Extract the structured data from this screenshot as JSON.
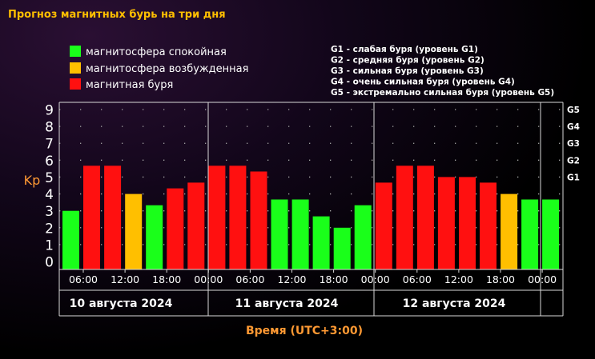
{
  "colors": {
    "calm": "#1aff1a",
    "excited": "#ffbf00",
    "storm": "#ff1010",
    "title": "#ffbf00",
    "kp_label": "#ff9933",
    "time_label": "#ff9933",
    "text": "#ffffff",
    "grid_dots": "#aaaaaa"
  },
  "chart_data": {
    "type": "bar",
    "title": "Прогноз магнитных бурь на три дня",
    "ylabel": "Kp",
    "xlabel": "Время (UTC+3:00)",
    "ylim": [
      0,
      9
    ],
    "y_ticks": [
      "0",
      "1",
      "2",
      "3",
      "4",
      "5",
      "6",
      "7",
      "8",
      "9"
    ],
    "right_ticks": [
      {
        "label": "G1",
        "value": 5
      },
      {
        "label": "G2",
        "value": 6
      },
      {
        "label": "G3",
        "value": 7
      },
      {
        "label": "G4",
        "value": 8
      },
      {
        "label": "G5",
        "value": 9
      }
    ],
    "x_tick_labels": [
      "06:00",
      "12:00",
      "18:00",
      "00:00",
      "06:00",
      "12:00",
      "18:00",
      "00:00",
      "06:00",
      "12:00",
      "18:00",
      "00:00"
    ],
    "days": [
      "10 августа 2024",
      "11 августа 2024",
      "12 августа 2024"
    ],
    "legend": [
      {
        "key": "calm",
        "label": "магнитосфера спокойная"
      },
      {
        "key": "excited",
        "label": "магнитосфера возбужденная"
      },
      {
        "key": "storm",
        "label": "магнитная буря"
      }
    ],
    "storm_levels": [
      "G1 - слабая буря (уровень G1)",
      "G2 - средняя буря (уровень G2)",
      "G3 - сильная буря (уровень G3)",
      "G4 - очень сильная буря (уровень G4)",
      "G5 - экстремально сильная буря (уровень G5)"
    ],
    "values": [
      3.0,
      5.67,
      5.67,
      4.0,
      3.33,
      4.33,
      4.67,
      5.67,
      5.67,
      5.33,
      3.67,
      3.67,
      2.67,
      2.0,
      3.33,
      4.67,
      5.67,
      5.67,
      5.0,
      5.0,
      4.67,
      4.0,
      3.67,
      3.67
    ],
    "levels": [
      "calm",
      "storm",
      "storm",
      "excited",
      "calm",
      "storm",
      "storm",
      "storm",
      "storm",
      "storm",
      "calm",
      "calm",
      "calm",
      "calm",
      "calm",
      "storm",
      "storm",
      "storm",
      "storm",
      "storm",
      "storm",
      "excited",
      "calm",
      "calm"
    ]
  }
}
